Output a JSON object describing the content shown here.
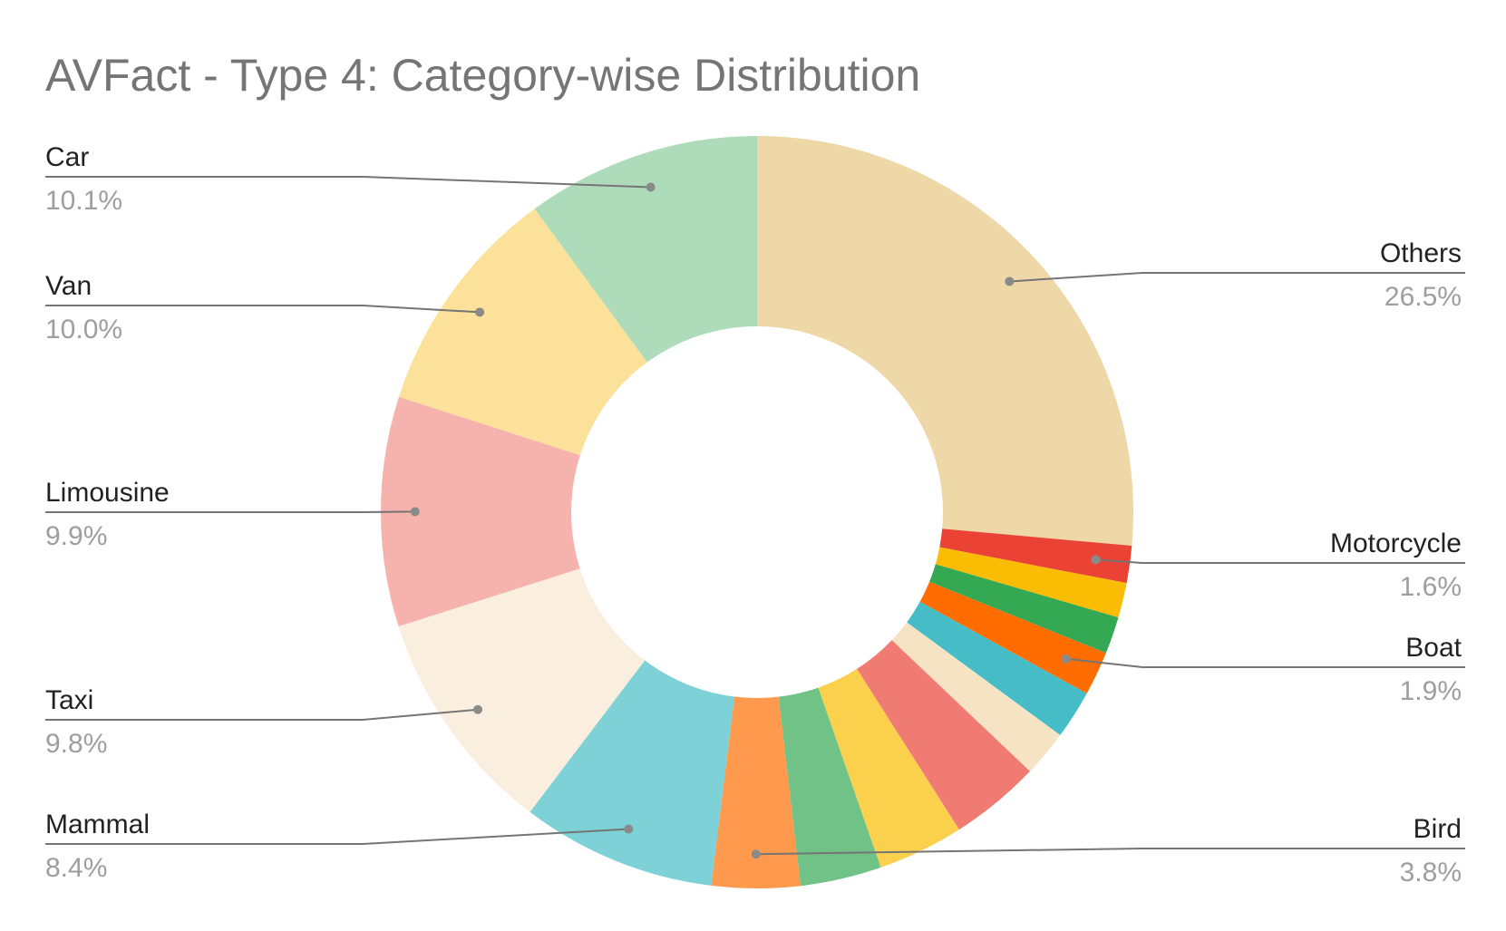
{
  "chart_data": {
    "type": "pie",
    "donut": true,
    "title": "AVFact - Type 4: Category-wise Distribution",
    "slices": [
      {
        "label": "Others",
        "value": 26.5,
        "value_label": "26.5%",
        "color": "#EED8A8"
      },
      {
        "label": "Motorcycle",
        "value": 1.6,
        "value_label": "1.6%",
        "color": "#EA4335"
      },
      {
        "label": "",
        "value": 1.5,
        "color": "#FBBC04"
      },
      {
        "label": "",
        "value": 1.6,
        "color": "#34A853"
      },
      {
        "label": "Boat",
        "value": 1.9,
        "value_label": "1.9%",
        "color": "#FF6D01"
      },
      {
        "label": "",
        "value": 2.1,
        "color": "#46BDC6"
      },
      {
        "label": "",
        "value": 2.0,
        "color": "#F5E3C3"
      },
      {
        "label": "",
        "value": 3.9,
        "color": "#F07B72"
      },
      {
        "label": "",
        "value": 3.7,
        "color": "#FAD04D"
      },
      {
        "label": "",
        "value": 3.5,
        "color": "#71C287"
      },
      {
        "label": "Bird",
        "value": 3.8,
        "value_label": "3.8%",
        "color": "#FF994D"
      },
      {
        "label": "Mammal",
        "value": 8.4,
        "value_label": "8.4%",
        "color": "#7ED1D7"
      },
      {
        "label": "Taxi",
        "value": 9.8,
        "value_label": "9.8%",
        "color": "#FAEFDE"
      },
      {
        "label": "Limousine",
        "value": 9.9,
        "value_label": "9.9%",
        "color": "#F6B3AE"
      },
      {
        "label": "Van",
        "value": 10.0,
        "value_label": "10.0%",
        "color": "#FCE19A"
      },
      {
        "label": "Car",
        "value": 10.1,
        "value_label": "10.1%",
        "color": "#AEDCBA"
      }
    ]
  }
}
